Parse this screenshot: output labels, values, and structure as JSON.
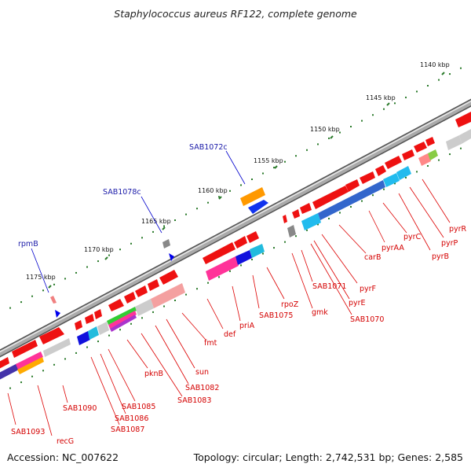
{
  "title": "Staphylococcus aureus RF122, complete genome",
  "accession": "Accession: NC_007622",
  "summary": "Topology: circular; Length: 2,742,531 bp; Genes: 2,585",
  "colors": {
    "forward_gene": "#ee1111",
    "leader_line_red": "#dd0000",
    "leader_line_blue": "#0000cc",
    "backbone": "#888888",
    "tick_dot": "#2a7a2a"
  },
  "ticks": [
    {
      "label": "1140 kbp"
    },
    {
      "label": "1145 kbp"
    },
    {
      "label": "1150 kbp"
    },
    {
      "label": "1155 kbp"
    },
    {
      "label": "1160 kbp"
    },
    {
      "label": "1165 kbp"
    },
    {
      "label": "1170 kbp"
    },
    {
      "label": "1175 kbp"
    }
  ],
  "blue_labels": [
    {
      "label": "SAB1072c"
    },
    {
      "label": "SAB1078c"
    },
    {
      "label": "rpmB"
    }
  ],
  "gene_labels": [
    {
      "label": "pyrR"
    },
    {
      "label": "pyrP"
    },
    {
      "label": "pyrB"
    },
    {
      "label": "pyrC"
    },
    {
      "label": "pyrAA"
    },
    {
      "label": "carB"
    },
    {
      "label": "pyrF"
    },
    {
      "label": "pyrE"
    },
    {
      "label": "SAB1070"
    },
    {
      "label": "SAB1071"
    },
    {
      "label": "gmk"
    },
    {
      "label": "rpoZ"
    },
    {
      "label": "SAB1075"
    },
    {
      "label": "priA"
    },
    {
      "label": "def"
    },
    {
      "label": "fmt"
    },
    {
      "label": "sun"
    },
    {
      "label": "SAB1082"
    },
    {
      "label": "SAB1083"
    },
    {
      "label": "pknB"
    },
    {
      "label": "SAB1085"
    },
    {
      "label": "SAB1086"
    },
    {
      "label": "SAB1087"
    },
    {
      "label": "SAB1090"
    },
    {
      "label": "recG"
    },
    {
      "label": "SAB1093"
    }
  ]
}
